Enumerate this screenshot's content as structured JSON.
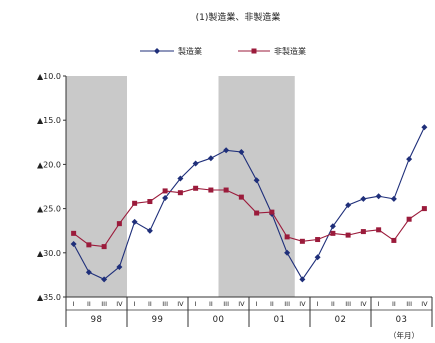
{
  "chart_data": {
    "type": "line",
    "title": "(1)製造業、非製造業",
    "unit_label": "（年月）",
    "y_axis": {
      "ylim": [
        -35,
        -10
      ],
      "ticks": [
        -10,
        -15,
        -20,
        -25,
        -30,
        -35
      ],
      "tick_labels": [
        "▲10.0",
        "▲15.0",
        "▲20.0",
        "▲25.0",
        "▲30.0",
        "▲35.0"
      ]
    },
    "years": [
      "98",
      "99",
      "00",
      "01",
      "02",
      "03"
    ],
    "quarter_labels": [
      "I",
      "II",
      "III",
      "IV"
    ],
    "shaded_periods": [
      {
        "from_index": 0,
        "to_index": 3
      },
      {
        "from_index": 10,
        "to_index": 14
      }
    ],
    "series": [
      {
        "name": "製造業",
        "color": "#1f2f7a",
        "marker": "diamond",
        "values": [
          -29.0,
          -32.2,
          -33.0,
          -31.6,
          -26.5,
          -27.5,
          -23.8,
          -21.6,
          -19.9,
          -19.3,
          -18.4,
          -18.6,
          -21.8,
          -25.6,
          -30.0,
          -33.0,
          -30.5,
          -27.0,
          -24.6,
          -23.9,
          -23.6,
          -23.9,
          -19.4,
          -15.8
        ]
      },
      {
        "name": "非製造業",
        "color": "#9b1b3b",
        "marker": "square",
        "values": [
          -27.8,
          -29.1,
          -29.3,
          -26.7,
          -24.4,
          -24.2,
          -23.0,
          -23.2,
          -22.7,
          -22.9,
          -22.9,
          -23.7,
          -25.5,
          -25.4,
          -28.2,
          -28.7,
          -28.5,
          -27.8,
          -28.0,
          -27.6,
          -27.4,
          -28.6,
          -26.2,
          -25.0
        ]
      }
    ]
  }
}
